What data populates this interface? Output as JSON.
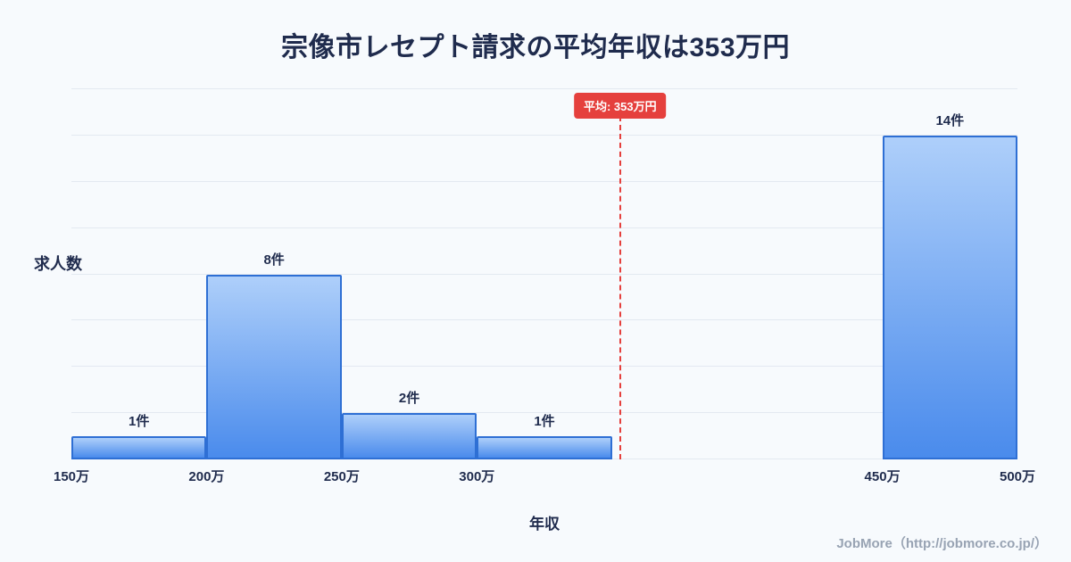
{
  "title": "宗像市レセプト請求の平均年収は353万円",
  "ylabel": "求人数",
  "xlabel": "年収",
  "footer": "JobMore（http://jobmore.co.jp/）",
  "colors": {
    "bg": "#f7fafd",
    "title": "#1f2b4d",
    "grid": "#e3e9f1",
    "barTop": "#aecffa",
    "barBottom": "#4a8bec",
    "barBorder": "#2e6fd4",
    "avg": "#e5403d",
    "footer": "#98a3b3"
  },
  "chart_data": {
    "type": "bar",
    "title": "宗像市レセプト請求の平均年収は353万円",
    "xlabel": "年収",
    "ylabel": "求人数",
    "x_unit": "万円",
    "xlim": [
      150,
      500
    ],
    "ylim": [
      0,
      16
    ],
    "grid_step": 2,
    "grid": true,
    "legend": false,
    "x_ticks": [
      {
        "value": 150,
        "label": "150万"
      },
      {
        "value": 200,
        "label": "200万"
      },
      {
        "value": 250,
        "label": "250万"
      },
      {
        "value": 300,
        "label": "300万"
      },
      {
        "value": 450,
        "label": "450万"
      },
      {
        "value": 500,
        "label": "500万"
      }
    ],
    "bins": [
      {
        "from": 150,
        "to": 200,
        "count": 1,
        "label": "1件"
      },
      {
        "from": 200,
        "to": 250,
        "count": 8,
        "label": "8件"
      },
      {
        "from": 250,
        "to": 300,
        "count": 2,
        "label": "2件"
      },
      {
        "from": 300,
        "to": 350,
        "count": 1,
        "label": "1件"
      },
      {
        "from": 450,
        "to": 500,
        "count": 14,
        "label": "14件"
      }
    ],
    "average": {
      "value": 353,
      "label": "平均: 353万円"
    }
  }
}
